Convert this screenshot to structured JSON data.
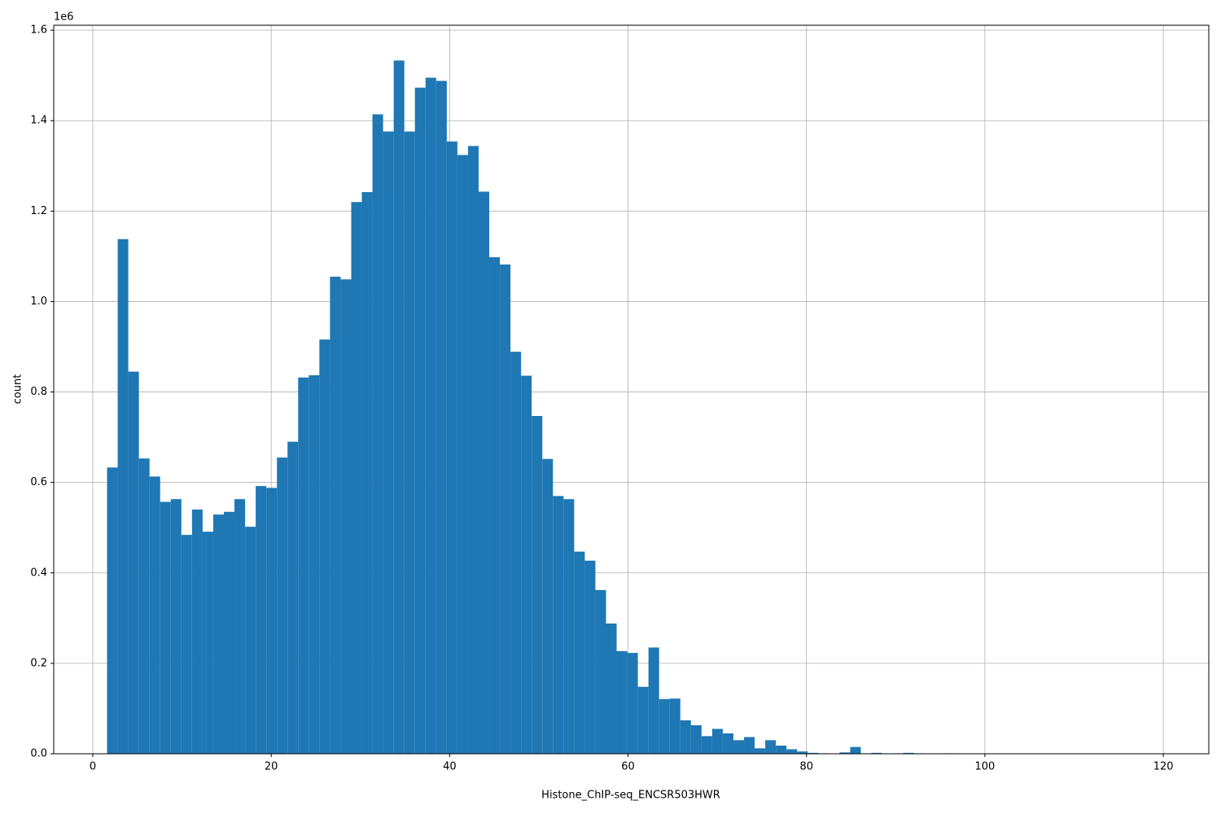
{
  "chart_data": {
    "type": "histogram",
    "xlabel": "Histone_ChIP-seq_ENCSR503HWR",
    "ylabel": "count",
    "y_offset_label": "1e6",
    "color": "#1f77b4",
    "grid": true,
    "bins": [
      1.6,
      2.79,
      3.98,
      5.17,
      6.36,
      7.55,
      8.74,
      9.93,
      11.12,
      12.31,
      13.5,
      14.69,
      15.88,
      17.07,
      18.26,
      19.45,
      20.64,
      21.83,
      23.02,
      24.21,
      25.4,
      26.59,
      27.78,
      28.97,
      30.16,
      31.35,
      32.54,
      33.73,
      34.92,
      36.11,
      37.3,
      38.49,
      39.68,
      40.87,
      42.06,
      43.25,
      44.44,
      45.63,
      46.82,
      48.01,
      49.2,
      50.39,
      51.58,
      52.77,
      53.96,
      55.15,
      56.34,
      57.53,
      58.72,
      59.91,
      61.1,
      62.29,
      63.48,
      64.67,
      65.86,
      67.05,
      68.24,
      69.43,
      70.62,
      71.81,
      73,
      74.19,
      75.38,
      76.57,
      77.76,
      78.95,
      80.14,
      81.33,
      82.52,
      83.71,
      84.9,
      86.09,
      87.28,
      88.47,
      89.66,
      90.85,
      92.04,
      93.23,
      94.42,
      95.61,
      96.8,
      97.99,
      99.18,
      100.37,
      101.56,
      102.75,
      103.94,
      105.13,
      106.32,
      107.51,
      108.7,
      109.89,
      111.08,
      112.27,
      113.46,
      114.65,
      115.84,
      117.03,
      118.22,
      119.41,
      120.6
    ],
    "values": [
      0.633,
      1.138,
      0.845,
      0.653,
      0.613,
      0.557,
      0.563,
      0.484,
      0.54,
      0.491,
      0.529,
      0.535,
      0.563,
      0.502,
      0.592,
      0.588,
      0.655,
      0.69,
      0.832,
      0.837,
      0.916,
      1.055,
      1.049,
      1.22,
      1.242,
      1.414,
      1.376,
      1.533,
      1.376,
      1.473,
      1.495,
      1.488,
      1.354,
      1.324,
      1.344,
      1.243,
      1.098,
      1.082,
      0.889,
      0.836,
      0.747,
      0.652,
      0.57,
      0.563,
      0.447,
      0.427,
      0.362,
      0.288,
      0.227,
      0.223,
      0.148,
      0.235,
      0.121,
      0.122,
      0.074,
      0.063,
      0.039,
      0.055,
      0.045,
      0.03,
      0.037,
      0.012,
      0.03,
      0.018,
      0.01,
      0.005,
      0.002,
      0.001,
      0,
      0.003,
      0.015,
      0,
      0.002,
      0,
      0.001,
      0.002,
      0.001,
      0,
      0,
      0.001,
      0,
      0,
      0,
      0,
      0,
      0,
      0,
      0,
      0,
      0,
      0,
      0,
      0,
      0,
      0,
      0,
      0,
      0,
      0,
      0
    ],
    "xlim": [
      -4.38,
      125.1
    ],
    "ylim": [
      0,
      1.611
    ],
    "xticks": [
      0,
      20,
      40,
      60,
      80,
      100,
      120
    ],
    "yticks": [
      {
        "value": 0,
        "label": "0.0"
      },
      0.2,
      0.4,
      0.6,
      0.8,
      {
        "value": 1,
        "label": "1.0"
      },
      1.2,
      1.4,
      1.6
    ]
  }
}
